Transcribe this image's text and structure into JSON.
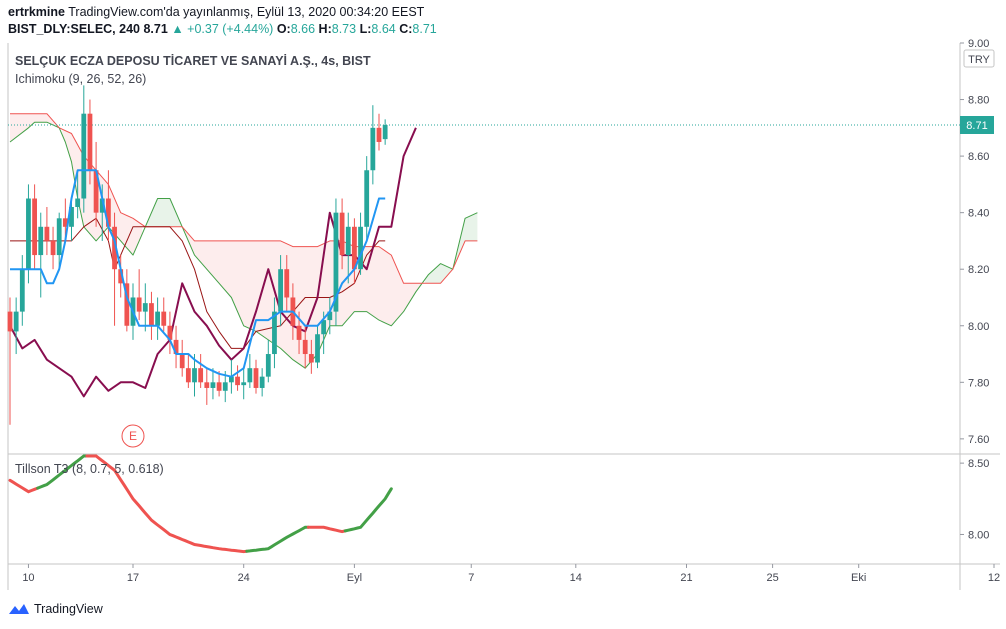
{
  "header": {
    "line1_user": "ertrkmine",
    "line1_text": "TradingView.com'da yayınlanmış, Eylül 13, 2020 00:34:20 EEST",
    "symbol": "BIST_DLY:SELEC, 240",
    "last": "8.71",
    "change": "+0.37 (+4.44%)",
    "o_label": "O:",
    "o": "8.66",
    "h_label": "H:",
    "h": "8.73",
    "l_label": "L:",
    "l": "8.64",
    "c_label": "C:",
    "c": "8.71"
  },
  "legend": {
    "title": "SELÇUK ECZA DEPOSU TİCARET VE SANAYİ A.Ş., 4s, BIST",
    "ichimoku": "Ichimoku (9, 26, 52, 26)",
    "tillson": "Tillson T3 (8, 0.7, 5, 0.618)",
    "earnings_marker": "E"
  },
  "price_axis": {
    "currency": "TRY",
    "ticks": [
      "9.00",
      "8.80",
      "8.60",
      "8.40",
      "8.20",
      "8.00",
      "7.80",
      "7.60"
    ],
    "tick_values": [
      9.0,
      8.8,
      8.6,
      8.4,
      8.2,
      8.0,
      7.8,
      7.6
    ],
    "last_price": "8.71",
    "last_value": 8.71,
    "ylim": [
      7.55,
      9.0
    ]
  },
  "t3_axis": {
    "ticks": [
      "8.50",
      "8.00"
    ],
    "tick_values": [
      8.5,
      8.0
    ],
    "ylim": [
      7.8,
      8.55
    ]
  },
  "time_axis": {
    "labels": [
      "10",
      "17",
      "24",
      "Eyl",
      "7",
      "14",
      "21",
      "25",
      "Eki",
      "12"
    ],
    "label_bars": [
      3,
      20,
      38,
      56,
      75,
      92,
      110,
      124,
      138,
      160
    ]
  },
  "colors": {
    "up": "#26a69a",
    "down": "#ef5350",
    "conversion": "#2196f3",
    "base": "#991515",
    "lagging": "#880e4f",
    "span_a": "#43a047",
    "span_b": "#ef5350",
    "cloud_bull": "rgba(67,160,71,0.12)",
    "cloud_bear": "rgba(239,83,80,0.10)",
    "t3_up": "#43a047",
    "t3_down": "#ef5350"
  },
  "footer": {
    "brand": "TradingView"
  },
  "chart_data": {
    "type": "candlestick",
    "title": "SELÇUK ECZA DEPOSU TİCARET VE SANAYİ A.Ş., 4s, BIST",
    "ylabel": "TRY",
    "candles": [
      [
        8.05,
        8.1,
        7.65,
        7.98
      ],
      [
        7.98,
        8.1,
        7.9,
        8.05
      ],
      [
        8.05,
        8.25,
        8.0,
        8.2
      ],
      [
        8.2,
        8.5,
        8.15,
        8.45
      ],
      [
        8.45,
        8.5,
        8.2,
        8.25
      ],
      [
        8.25,
        8.4,
        8.1,
        8.35
      ],
      [
        8.35,
        8.42,
        8.25,
        8.3
      ],
      [
        8.3,
        8.35,
        8.2,
        8.25
      ],
      [
        8.25,
        8.4,
        8.2,
        8.38
      ],
      [
        8.38,
        8.45,
        8.3,
        8.35
      ],
      [
        8.35,
        8.45,
        8.3,
        8.42
      ],
      [
        8.42,
        8.55,
        8.38,
        8.45
      ],
      [
        8.45,
        8.85,
        8.4,
        8.75
      ],
      [
        8.75,
        8.8,
        8.5,
        8.55
      ],
      [
        8.55,
        8.65,
        8.35,
        8.4
      ],
      [
        8.4,
        8.5,
        8.3,
        8.45
      ],
      [
        8.45,
        8.55,
        8.3,
        8.35
      ],
      [
        8.35,
        8.4,
        8.0,
        8.2
      ],
      [
        8.2,
        8.25,
        8.1,
        8.15
      ],
      [
        8.15,
        8.2,
        7.98,
        8.0
      ],
      [
        8.0,
        8.15,
        7.95,
        8.1
      ],
      [
        8.1,
        8.2,
        8.02,
        8.05
      ],
      [
        8.05,
        8.15,
        7.98,
        8.08
      ],
      [
        8.08,
        8.12,
        7.95,
        8.0
      ],
      [
        8.0,
        8.1,
        7.95,
        8.05
      ],
      [
        8.05,
        8.1,
        7.98,
        8.0
      ],
      [
        8.0,
        8.05,
        7.9,
        7.95
      ],
      [
        7.95,
        8.0,
        7.85,
        7.9
      ],
      [
        7.9,
        7.95,
        7.82,
        7.85
      ],
      [
        7.85,
        7.9,
        7.78,
        7.8
      ],
      [
        7.8,
        7.9,
        7.75,
        7.85
      ],
      [
        7.85,
        7.9,
        7.78,
        7.8
      ],
      [
        7.8,
        7.85,
        7.72,
        7.78
      ],
      [
        7.78,
        7.85,
        7.74,
        7.8
      ],
      [
        7.8,
        7.84,
        7.75,
        7.77
      ],
      [
        7.77,
        7.84,
        7.73,
        7.8
      ],
      [
        7.8,
        7.88,
        7.76,
        7.82
      ],
      [
        7.82,
        7.86,
        7.77,
        7.79
      ],
      [
        7.79,
        7.85,
        7.74,
        7.8
      ],
      [
        7.8,
        7.9,
        7.78,
        7.85
      ],
      [
        7.85,
        7.88,
        7.76,
        7.78
      ],
      [
        7.78,
        7.85,
        7.75,
        7.82
      ],
      [
        7.82,
        7.95,
        7.8,
        7.9
      ],
      [
        7.9,
        8.1,
        7.85,
        8.05
      ],
      [
        8.05,
        8.25,
        8.0,
        8.2
      ],
      [
        8.2,
        8.25,
        8.05,
        8.1
      ],
      [
        8.1,
        8.15,
        7.95,
        8.0
      ],
      [
        8.0,
        8.05,
        7.9,
        7.95
      ],
      [
        7.95,
        8.0,
        7.85,
        7.9
      ],
      [
        7.9,
        7.95,
        7.83,
        7.87
      ],
      [
        7.87,
        8.0,
        7.85,
        7.97
      ],
      [
        7.97,
        8.05,
        7.9,
        8.02
      ],
      [
        8.02,
        8.1,
        7.97,
        8.05
      ],
      [
        8.05,
        8.45,
        8.0,
        8.4
      ],
      [
        8.4,
        8.45,
        8.2,
        8.25
      ],
      [
        8.25,
        8.4,
        8.15,
        8.35
      ],
      [
        8.35,
        8.38,
        8.15,
        8.2
      ],
      [
        8.2,
        8.4,
        8.18,
        8.35
      ],
      [
        8.35,
        8.6,
        8.3,
        8.55
      ],
      [
        8.55,
        8.78,
        8.5,
        8.7
      ],
      [
        8.7,
        8.75,
        8.62,
        8.65
      ],
      [
        8.66,
        8.73,
        8.64,
        8.71
      ]
    ],
    "candle_bars": [
      0,
      1,
      2,
      3,
      4,
      5,
      6,
      7,
      8,
      9,
      10,
      11,
      12,
      13,
      14,
      15,
      16,
      17,
      18,
      19,
      20,
      21,
      22,
      23,
      24,
      25,
      26,
      27,
      28,
      29,
      30,
      31,
      32,
      33,
      34,
      35,
      36,
      37,
      38,
      39,
      40,
      41,
      42,
      43,
      44,
      45,
      46,
      47,
      48,
      49,
      50,
      51,
      52,
      53,
      54,
      55,
      56,
      57,
      58,
      59,
      60,
      61
    ],
    "ichimoku": {
      "conversion": [
        [
          0,
          8.2
        ],
        [
          5,
          8.2
        ],
        [
          6,
          8.15
        ],
        [
          7,
          8.15
        ],
        [
          8,
          8.2
        ],
        [
          9,
          8.3
        ],
        [
          10,
          8.45
        ],
        [
          11,
          8.55
        ],
        [
          14,
          8.55
        ],
        [
          15,
          8.45
        ],
        [
          16,
          8.35
        ],
        [
          17,
          8.3
        ],
        [
          18,
          8.2
        ],
        [
          19,
          8.1
        ],
        [
          20,
          8.05
        ],
        [
          21,
          8.0
        ],
        [
          24,
          8.0
        ],
        [
          26,
          7.95
        ],
        [
          27,
          7.9
        ],
        [
          29,
          7.9
        ],
        [
          30,
          7.88
        ],
        [
          32,
          7.85
        ],
        [
          34,
          7.83
        ],
        [
          36,
          7.82
        ],
        [
          38,
          7.85
        ],
        [
          40,
          8.02
        ],
        [
          42,
          8.02
        ],
        [
          44,
          8.05
        ],
        [
          46,
          8.05
        ],
        [
          48,
          8.0
        ],
        [
          50,
          8.0
        ],
        [
          52,
          8.05
        ],
        [
          54,
          8.15
        ],
        [
          56,
          8.2
        ],
        [
          58,
          8.3
        ],
        [
          60,
          8.45
        ],
        [
          61,
          8.45
        ]
      ],
      "base": [
        [
          0,
          8.3
        ],
        [
          10,
          8.3
        ],
        [
          12,
          8.35
        ],
        [
          14,
          8.38
        ],
        [
          16,
          8.3
        ],
        [
          17,
          8.2
        ],
        [
          18,
          8.25
        ],
        [
          20,
          8.35
        ],
        [
          22,
          8.35
        ],
        [
          26,
          8.35
        ],
        [
          28,
          8.3
        ],
        [
          30,
          8.2
        ],
        [
          32,
          8.05
        ],
        [
          34,
          7.98
        ],
        [
          36,
          7.92
        ],
        [
          38,
          7.92
        ],
        [
          40,
          7.98
        ],
        [
          44,
          8.0
        ],
        [
          46,
          8.05
        ],
        [
          48,
          8.1
        ],
        [
          52,
          8.1
        ],
        [
          54,
          8.12
        ],
        [
          56,
          8.15
        ],
        [
          58,
          8.25
        ],
        [
          60,
          8.3
        ],
        [
          61,
          8.3
        ]
      ],
      "span_a": [
        [
          0,
          8.65
        ],
        [
          3,
          8.7
        ],
        [
          4,
          8.72
        ],
        [
          6,
          8.72
        ],
        [
          8,
          8.7
        ],
        [
          9,
          8.65
        ],
        [
          10,
          8.58
        ],
        [
          11,
          8.45
        ],
        [
          12,
          8.35
        ],
        [
          14,
          8.3
        ],
        [
          16,
          8.35
        ],
        [
          18,
          8.3
        ],
        [
          20,
          8.25
        ],
        [
          21,
          8.3
        ],
        [
          22,
          8.35
        ],
        [
          24,
          8.45
        ],
        [
          26,
          8.45
        ],
        [
          28,
          8.35
        ],
        [
          30,
          8.25
        ],
        [
          32,
          8.2
        ],
        [
          34,
          8.15
        ],
        [
          36,
          8.1
        ],
        [
          38,
          8.0
        ],
        [
          40,
          7.98
        ],
        [
          42,
          7.95
        ],
        [
          44,
          7.92
        ],
        [
          46,
          7.88
        ],
        [
          48,
          7.85
        ],
        [
          50,
          7.9
        ],
        [
          52,
          8.0
        ],
        [
          54,
          8.0
        ],
        [
          56,
          8.05
        ],
        [
          58,
          8.05
        ],
        [
          60,
          8.02
        ],
        [
          62,
          8.0
        ],
        [
          64,
          8.05
        ],
        [
          66,
          8.12
        ],
        [
          68,
          8.18
        ],
        [
          70,
          8.22
        ],
        [
          72,
          8.2
        ],
        [
          74,
          8.38
        ],
        [
          76,
          8.4
        ]
      ],
      "span_b": [
        [
          0,
          8.75
        ],
        [
          6,
          8.75
        ],
        [
          8,
          8.7
        ],
        [
          10,
          8.68
        ],
        [
          12,
          8.6
        ],
        [
          14,
          8.55
        ],
        [
          16,
          8.5
        ],
        [
          18,
          8.4
        ],
        [
          20,
          8.38
        ],
        [
          22,
          8.35
        ],
        [
          26,
          8.35
        ],
        [
          28,
          8.35
        ],
        [
          30,
          8.3
        ],
        [
          32,
          8.3
        ],
        [
          34,
          8.3
        ],
        [
          36,
          8.3
        ],
        [
          38,
          8.3
        ],
        [
          40,
          8.3
        ],
        [
          42,
          8.3
        ],
        [
          44,
          8.3
        ],
        [
          46,
          8.28
        ],
        [
          48,
          8.28
        ],
        [
          50,
          8.28
        ],
        [
          52,
          8.3
        ],
        [
          54,
          8.3
        ],
        [
          56,
          8.28
        ],
        [
          58,
          8.28
        ],
        [
          60,
          8.28
        ],
        [
          62,
          8.25
        ],
        [
          64,
          8.15
        ],
        [
          66,
          8.15
        ],
        [
          68,
          8.15
        ],
        [
          70,
          8.15
        ],
        [
          72,
          8.2
        ],
        [
          74,
          8.3
        ],
        [
          76,
          8.3
        ]
      ],
      "lagging": [
        [
          0,
          8.0
        ],
        [
          2,
          7.92
        ],
        [
          4,
          7.95
        ],
        [
          6,
          7.88
        ],
        [
          8,
          7.85
        ],
        [
          10,
          7.82
        ],
        [
          12,
          7.75
        ],
        [
          14,
          7.82
        ],
        [
          16,
          7.77
        ],
        [
          18,
          7.8
        ],
        [
          20,
          7.8
        ],
        [
          22,
          7.78
        ],
        [
          24,
          7.9
        ],
        [
          26,
          7.95
        ],
        [
          28,
          8.15
        ],
        [
          30,
          8.05
        ],
        [
          32,
          8.0
        ],
        [
          34,
          7.93
        ],
        [
          36,
          7.88
        ],
        [
          38,
          7.92
        ],
        [
          40,
          8.05
        ],
        [
          42,
          8.2
        ],
        [
          44,
          8.05
        ],
        [
          46,
          8.0
        ],
        [
          48,
          7.98
        ],
        [
          50,
          8.1
        ],
        [
          52,
          8.4
        ],
        [
          54,
          8.25
        ],
        [
          56,
          8.25
        ],
        [
          58,
          8.2
        ],
        [
          60,
          8.35
        ],
        [
          62,
          8.35
        ],
        [
          64,
          8.6
        ],
        [
          66,
          8.7
        ]
      ]
    },
    "tillson_t3": [
      [
        0,
        8.38
      ],
      [
        3,
        8.3
      ],
      [
        6,
        8.35
      ],
      [
        9,
        8.45
      ],
      [
        12,
        8.55
      ],
      [
        14,
        8.55
      ],
      [
        17,
        8.45
      ],
      [
        20,
        8.25
      ],
      [
        23,
        8.1
      ],
      [
        26,
        8.0
      ],
      [
        30,
        7.93
      ],
      [
        34,
        7.9
      ],
      [
        38,
        7.88
      ],
      [
        42,
        7.9
      ],
      [
        45,
        7.98
      ],
      [
        48,
        8.05
      ],
      [
        51,
        8.05
      ],
      [
        54,
        8.02
      ],
      [
        57,
        8.05
      ],
      [
        59,
        8.15
      ],
      [
        61,
        8.25
      ],
      [
        62,
        8.32
      ]
    ],
    "tillson_t3_turn_points": [
      5,
      13,
      39,
      49,
      55
    ],
    "earnings_marker_bar": 20,
    "earnings_marker_label": "E"
  }
}
